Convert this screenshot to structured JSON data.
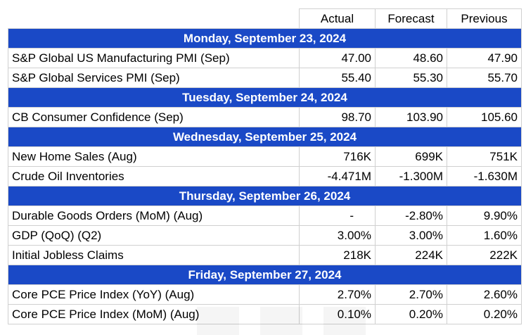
{
  "columns": [
    "",
    "Actual",
    "Forecast",
    "Previous"
  ],
  "days": [
    {
      "date": "Monday, September 23, 2024",
      "events": [
        {
          "name": "S&P Global US Manufacturing PMI (Sep)",
          "actual": "47.00",
          "forecast": "48.60",
          "previous": "47.90"
        },
        {
          "name": "S&P Global Services PMI (Sep)",
          "actual": "55.40",
          "forecast": "55.30",
          "previous": "55.70"
        }
      ]
    },
    {
      "date": "Tuesday, September 24, 2024",
      "events": [
        {
          "name": "CB Consumer Confidence (Sep)",
          "actual": "98.70",
          "forecast": "103.90",
          "previous": "105.60"
        }
      ]
    },
    {
      "date": "Wednesday, September 25, 2024",
      "events": [
        {
          "name": "New Home Sales (Aug)",
          "actual": "716K",
          "forecast": "699K",
          "previous": "751K"
        },
        {
          "name": "Crude Oil Inventories",
          "actual": "-4.471M",
          "forecast": "-1.300M",
          "previous": "-1.630M"
        }
      ]
    },
    {
      "date": "Thursday, September 26, 2024",
      "events": [
        {
          "name": "Durable Goods Orders (MoM) (Aug)",
          "actual": "-",
          "forecast": "-2.80%",
          "previous": "9.90%"
        },
        {
          "name": "GDP (QoQ) (Q2)",
          "actual": "3.00%",
          "forecast": "3.00%",
          "previous": "1.60%"
        },
        {
          "name": "Initial Jobless Claims",
          "actual": "218K",
          "forecast": "224K",
          "previous": "222K"
        }
      ]
    },
    {
      "date": "Friday, September 27, 2024",
      "events": [
        {
          "name": "Core PCE Price Index (YoY) (Aug)",
          "actual": "2.70%",
          "forecast": "2.70%",
          "previous": "2.60%"
        },
        {
          "name": "Core PCE Price Index (MoM) (Aug)",
          "actual": "0.10%",
          "forecast": "0.20%",
          "previous": "0.20%"
        }
      ]
    }
  ],
  "colors": {
    "day_header_bg": "#1a49c6",
    "day_header_text": "#ffffff",
    "grid": "#d0d0d0"
  }
}
